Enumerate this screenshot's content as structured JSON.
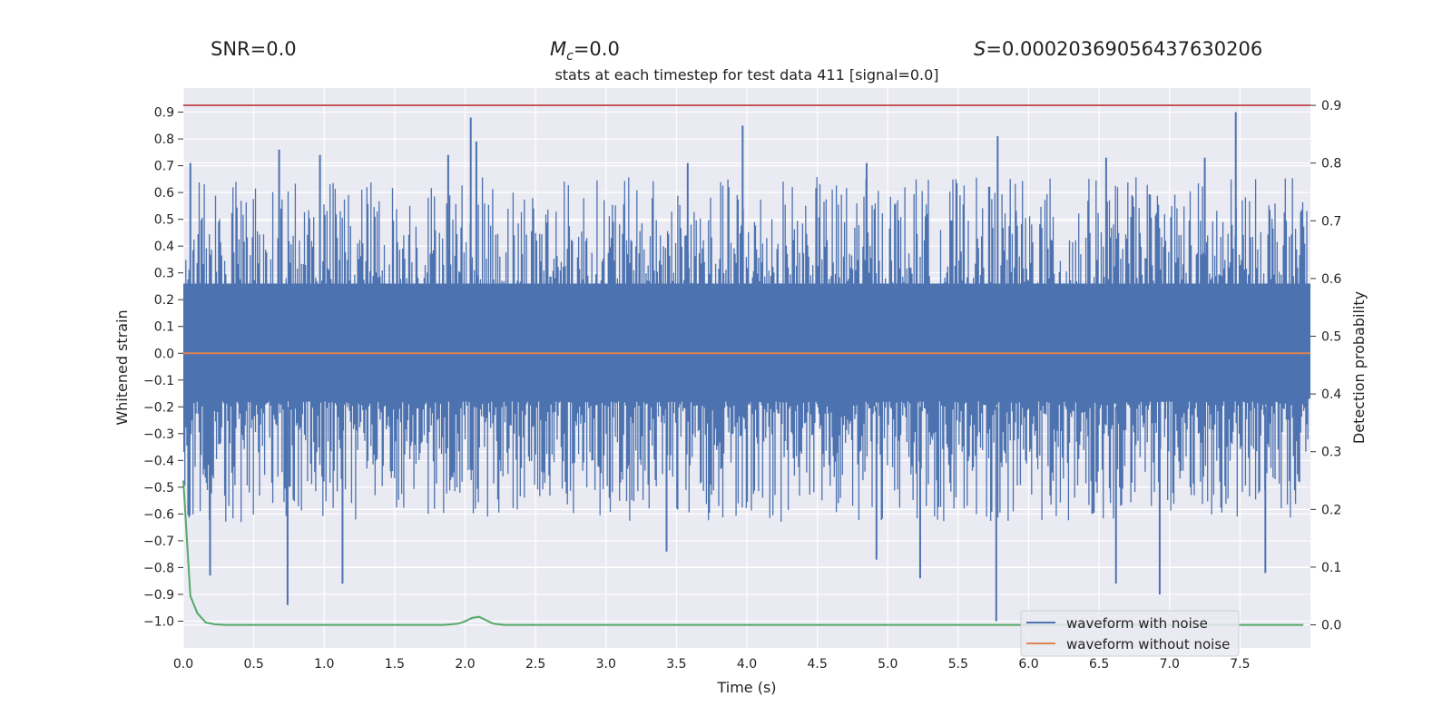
{
  "header": {
    "snr": "SNR=0.0",
    "mc_symbol": "M",
    "mc_sub": "c",
    "mc_value": "=0.0",
    "s_symbol": "S",
    "s_value": "=0.00020369056437630206"
  },
  "chart_data": {
    "type": "line",
    "title": "stats at each timestep for test data 411 [signal=0.0]",
    "xlabel": "Time (s)",
    "ylabel": "Whitened strain",
    "y2label": "Detection probability",
    "xlim": [
      0.0,
      8.0
    ],
    "ylim": [
      -1.1,
      0.99
    ],
    "y2lim": [
      -0.04,
      0.93
    ],
    "xticks": [
      "0.0",
      "0.5",
      "1.0",
      "1.5",
      "2.0",
      "2.5",
      "3.0",
      "3.5",
      "4.0",
      "4.5",
      "5.0",
      "5.5",
      "6.0",
      "6.5",
      "7.0",
      "7.5"
    ],
    "yticks": [
      "0.9",
      "0.8",
      "0.7",
      "0.6",
      "0.5",
      "0.4",
      "0.3",
      "0.2",
      "0.1",
      "0.0",
      "-0.1",
      "-0.2",
      "-0.3",
      "-0.4",
      "-0.5",
      "-0.6",
      "-0.7",
      "-0.8",
      "-0.9",
      "-1.0"
    ],
    "y2ticks": [
      "0.9",
      "0.8",
      "0.7",
      "0.6",
      "0.5",
      "0.4",
      "0.3",
      "0.2",
      "0.1",
      "0.0"
    ],
    "threshold": 0.9,
    "grid": true,
    "legend_position": "lower-right",
    "series": [
      {
        "name": "waveform with noise",
        "color": "#4c72b0",
        "axis": "left",
        "envelope_note": "dense noise, typical range approx -0.45 to 0.45",
        "peaks": [
          {
            "x": 0.05,
            "y": 0.71
          },
          {
            "x": 0.68,
            "y": 0.76
          },
          {
            "x": 0.97,
            "y": 0.74
          },
          {
            "x": 1.88,
            "y": 0.74
          },
          {
            "x": 2.04,
            "y": 0.88
          },
          {
            "x": 2.08,
            "y": 0.79
          },
          {
            "x": 3.58,
            "y": 0.71
          },
          {
            "x": 3.97,
            "y": 0.85
          },
          {
            "x": 4.85,
            "y": 0.71
          },
          {
            "x": 5.78,
            "y": 0.81
          },
          {
            "x": 6.55,
            "y": 0.73
          },
          {
            "x": 7.25,
            "y": 0.73
          },
          {
            "x": 7.47,
            "y": 0.9
          }
        ],
        "troughs": [
          {
            "x": 0.19,
            "y": -0.83
          },
          {
            "x": 0.74,
            "y": -0.94
          },
          {
            "x": 1.13,
            "y": -0.86
          },
          {
            "x": 3.43,
            "y": -0.74
          },
          {
            "x": 4.92,
            "y": -0.77
          },
          {
            "x": 5.23,
            "y": -0.84
          },
          {
            "x": 5.77,
            "y": -1.0
          },
          {
            "x": 6.62,
            "y": -0.86
          },
          {
            "x": 6.93,
            "y": -0.9
          },
          {
            "x": 7.68,
            "y": -0.82
          }
        ]
      },
      {
        "name": "waveform without noise",
        "color": "#dd8452",
        "axis": "left",
        "x": [
          0.0,
          8.0
        ],
        "y": [
          0.0,
          0.0
        ]
      },
      {
        "name": "detection probability",
        "color": "#55a868",
        "axis": "right",
        "x": [
          0.0,
          0.05,
          0.1,
          0.16,
          0.22,
          0.3,
          0.5,
          1.0,
          1.5,
          1.85,
          1.95,
          2.0,
          2.05,
          2.1,
          2.15,
          2.2,
          2.28,
          2.4,
          3.0,
          4.0,
          5.0,
          6.0,
          7.0,
          7.95
        ],
        "y": [
          0.25,
          0.05,
          0.02,
          0.004,
          0.001,
          0.0,
          0.0,
          0.0,
          0.0,
          0.0,
          0.002,
          0.006,
          0.012,
          0.014,
          0.008,
          0.002,
          0.0,
          0.0,
          0.0,
          0.0,
          0.0,
          0.0,
          0.0,
          0.0
        ]
      }
    ]
  }
}
